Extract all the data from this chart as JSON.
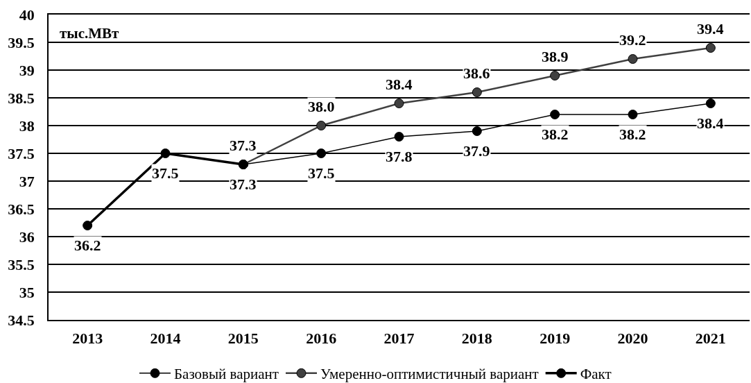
{
  "chart_data": {
    "type": "line",
    "ylabel": "тыс.МВт",
    "categories": [
      "2013",
      "2014",
      "2015",
      "2016",
      "2017",
      "2018",
      "2019",
      "2020",
      "2021"
    ],
    "series": [
      {
        "name": "Базовый вариант",
        "color": "#000000",
        "values": [
          null,
          null,
          37.3,
          37.5,
          37.8,
          37.9,
          38.2,
          38.2,
          38.4
        ],
        "value_labels": [
          null,
          null,
          null,
          "37.5",
          "37.8",
          "37.9",
          "38.2",
          "38.2",
          "38.4"
        ]
      },
      {
        "name": "Умеренно-оптимистичный вариант",
        "color": "#404040",
        "values": [
          null,
          null,
          37.3,
          38.0,
          38.4,
          38.6,
          38.9,
          39.2,
          39.4
        ],
        "value_labels": [
          null,
          null,
          "37.3",
          "38.0",
          "38.4",
          "38.6",
          "38.9",
          "39.2",
          "39.4"
        ]
      },
      {
        "name": "Факт",
        "color": "#000000",
        "values": [
          36.2,
          37.5,
          37.3,
          null,
          null,
          null,
          null,
          null,
          null
        ],
        "value_labels": [
          "36.2",
          "37.5",
          "37.3",
          null,
          null,
          null,
          null,
          null,
          null
        ]
      }
    ],
    "ylim": [
      34.5,
      40
    ],
    "yticks": [
      34.5,
      35,
      35.5,
      36,
      36.5,
      37,
      37.5,
      38,
      38.5,
      39,
      39.5,
      40
    ],
    "grid": "y",
    "legend": "bottom",
    "marker": "circle",
    "line_style": "solid"
  }
}
